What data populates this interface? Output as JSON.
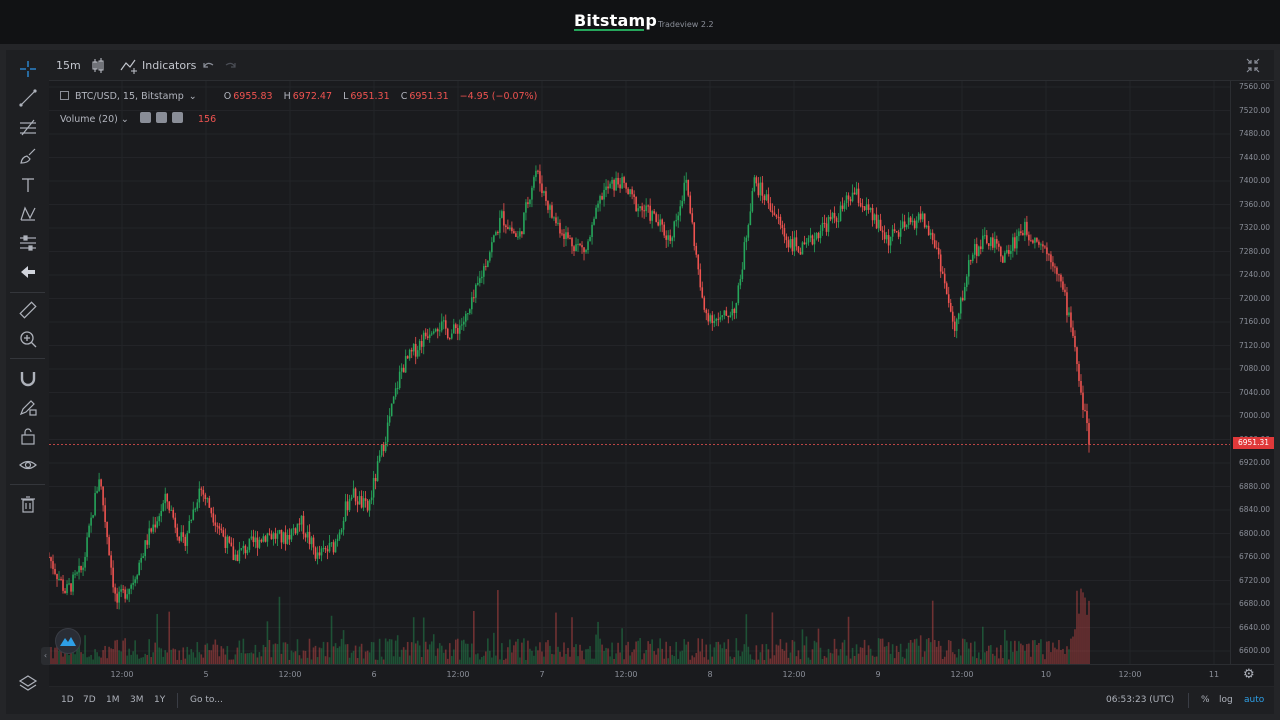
{
  "header": {
    "brand": "Bitstamp",
    "subtitle": "Tradeview 2.2",
    "accent": "#26a65b"
  },
  "toolbar": {
    "interval": "15m",
    "chart_type_icon": "candles-icon",
    "indicators_label": "Indicators",
    "undo_icon": "undo-icon",
    "redo_icon": "redo-icon",
    "fullscreen_icon": "fullscreen-icon"
  },
  "left_tools": [
    "crosshair-icon",
    "trend-line-icon",
    "fib-icon",
    "brush-icon",
    "text-icon",
    "pattern-icon",
    "prediction-icon",
    "arrow-left-icon",
    "ruler-icon",
    "zoom-in-icon",
    "magnet-icon",
    "lock-drawing-icon",
    "unlock-icon",
    "eye-icon",
    "trash-icon",
    "layers-icon"
  ],
  "legend": {
    "symbol": "BTC/USD, 15, Bitstamp",
    "o_label": "O",
    "o": "6955.83",
    "h_label": "H",
    "h": "6972.47",
    "l_label": "L",
    "l": "6951.31",
    "c_label": "C",
    "c": "6951.31",
    "change": "−4.95 (−0.07%)",
    "volume_label": "Volume (20)",
    "volume_value": "156"
  },
  "last_price": "6951.31",
  "colors": {
    "up": "#26a65b",
    "down": "#ef5350",
    "background": "#1a1b1e",
    "grid": "#232428"
  },
  "price_axis": [
    "7560.00",
    "7520.00",
    "7480.00",
    "7440.00",
    "7400.00",
    "7360.00",
    "7320.00",
    "7280.00",
    "7240.00",
    "7200.00",
    "7160.00",
    "7120.00",
    "7080.00",
    "7040.00",
    "7000.00",
    "6960.00",
    "6920.00",
    "6880.00",
    "6840.00",
    "6800.00",
    "6760.00",
    "6720.00",
    "6680.00",
    "6640.00",
    "6600.00"
  ],
  "time_axis": [
    "12:00",
    "5",
    "12:00",
    "6",
    "12:00",
    "7",
    "12:00",
    "8",
    "12:00",
    "9",
    "12:00",
    "10",
    "12:00",
    "11"
  ],
  "bottom": {
    "ranges": [
      "1D",
      "7D",
      "1M",
      "3M",
      "1Y"
    ],
    "goto": "Go to...",
    "clock": "06:53:23 (UTC)",
    "percent": "%",
    "log": "log",
    "auto": "auto"
  },
  "chart_data": {
    "type": "candlestick",
    "symbol": "BTC/USD",
    "interval": "15",
    "ylim": [
      6600,
      7560
    ],
    "x_labels": [
      "12:00",
      "5",
      "12:00",
      "6",
      "12:00",
      "7",
      "12:00",
      "8",
      "12:00",
      "9",
      "12:00",
      "10",
      "12:00",
      "11"
    ],
    "close_series_approx": [
      6760,
      6700,
      6740,
      6900,
      6680,
      6720,
      6800,
      6860,
      6780,
      6880,
      6820,
      6760,
      6780,
      6800,
      6790,
      6820,
      6760,
      6780,
      6870,
      6840,
      6960,
      7080,
      7120,
      7160,
      7140,
      7170,
      7260,
      7340,
      7300,
      7420,
      7340,
      7300,
      7280,
      7380,
      7400,
      7360,
      7340,
      7300,
      7400,
      7180,
      7160,
      7190,
      7400,
      7360,
      7300,
      7280,
      7320,
      7340,
      7380,
      7340,
      7300,
      7320,
      7340,
      7280,
      7140,
      7280,
      7300,
      7270,
      7320,
      7300,
      7260,
      7150,
      6951.31
    ],
    "volume_last": 156
  }
}
